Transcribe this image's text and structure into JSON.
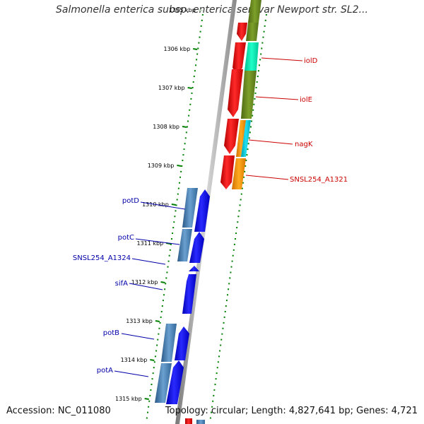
{
  "title": "Salmonella enterica subsp. enterica serovar Newport str. SL2...",
  "footer": {
    "accession": "Accession: NC_011080",
    "topology": "Topology: circular; Length: 4,827,641 bp; Genes: 4,721"
  },
  "ticks": [
    {
      "label": "1305 kbp",
      "faded": true
    },
    {
      "label": "1306 kbp"
    },
    {
      "label": "1307 kbp"
    },
    {
      "label": "1308 kbp"
    },
    {
      "label": "1309 kbp"
    },
    {
      "label": "1310 kbp"
    },
    {
      "label": "1311 kbp"
    },
    {
      "label": "1312 kbp"
    },
    {
      "label": "1313 kbp"
    },
    {
      "label": "1314 kbp"
    },
    {
      "label": "1315 kbp"
    }
  ],
  "genes_right": [
    {
      "label": "iolD"
    },
    {
      "label": "iolE"
    },
    {
      "label": "nagK"
    },
    {
      "label": "SNSL254_A1321"
    }
  ],
  "genes_left": [
    {
      "label": "potD"
    },
    {
      "label": "potC"
    },
    {
      "label": "SNSL254_A1324"
    },
    {
      "label": "sifA"
    },
    {
      "label": "potB"
    },
    {
      "label": "potA"
    }
  ],
  "colors": {
    "cds_red": "#ff0000",
    "cds_blue": "#0000ff",
    "cog_olive": "#6b8e23",
    "cog_teal": "#00e6b0",
    "cog_cyan": "#00c8d8",
    "cog_orange": "#ff9a00",
    "cog_steel": "#4682b4",
    "tick_green": "#008000",
    "backbone": "#888888"
  }
}
